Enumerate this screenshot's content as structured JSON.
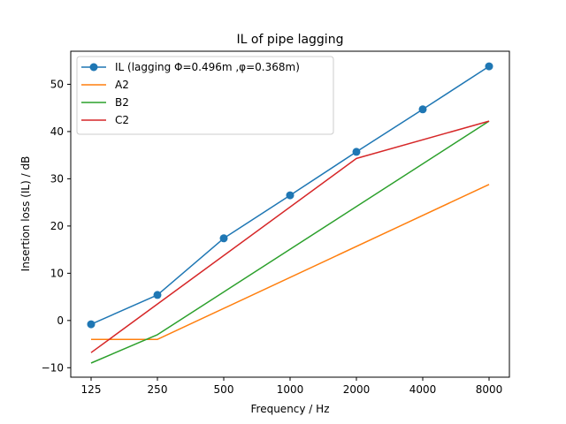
{
  "chart_data": {
    "type": "line",
    "title": "IL of pipe lagging",
    "xlabel": "Frequency / Hz",
    "ylabel": "Insertion loss (IL) / dB",
    "categories": [
      "125",
      "250",
      "500",
      "1000",
      "2000",
      "4000",
      "8000"
    ],
    "ylim": [
      -12,
      57
    ],
    "yticks": [
      -10,
      0,
      10,
      20,
      30,
      40,
      50
    ],
    "grid": false,
    "legend_position": "top-left",
    "series": [
      {
        "name": "IL (lagging Φ=0.496m ,φ=0.368m)",
        "color": "#1f77b4",
        "marker": true,
        "points": [
          [
            125,
            -0.8
          ],
          [
            250,
            5.4
          ],
          [
            500,
            17.4
          ],
          [
            1000,
            26.5
          ],
          [
            2000,
            35.7
          ],
          [
            4000,
            44.7
          ],
          [
            8000,
            53.8
          ]
        ]
      },
      {
        "name": "A2",
        "color": "#ff7f0e",
        "marker": false,
        "points": [
          [
            125,
            -4.0
          ],
          [
            250,
            -4.0
          ],
          [
            8000,
            28.8
          ]
        ]
      },
      {
        "name": "B2",
        "color": "#2ca02c",
        "marker": false,
        "points": [
          [
            125,
            -9.0
          ],
          [
            250,
            -3.0
          ],
          [
            8000,
            42.2
          ]
        ]
      },
      {
        "name": "C2",
        "color": "#d62728",
        "marker": false,
        "points": [
          [
            125,
            -6.8
          ],
          [
            2000,
            34.3
          ],
          [
            8000,
            42.2
          ]
        ]
      }
    ]
  }
}
